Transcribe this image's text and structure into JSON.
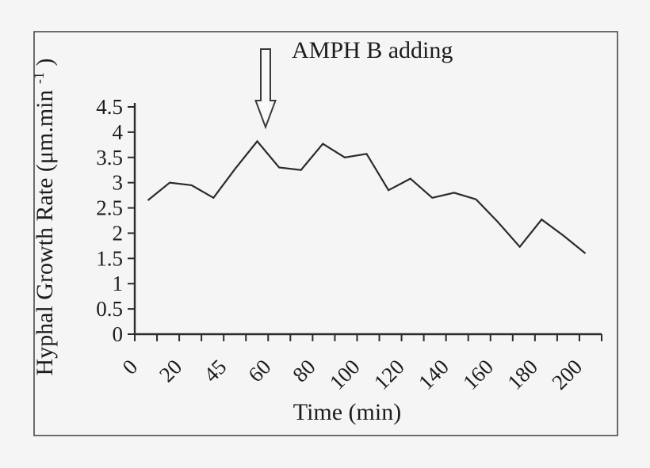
{
  "chart_data": {
    "type": "line",
    "title": "",
    "xlabel": "Time (min)",
    "ylabel": "Hyphal Growth Rate (μm.min⁻¹)",
    "ylabel_parts": {
      "pre": "Hyphal Growth Rate (μm.min",
      "sup": "-1",
      "post": ")"
    },
    "x_tick_labels": [
      "0",
      "20",
      "45",
      "60",
      "80",
      "100",
      "120",
      "140",
      "160",
      "180",
      "200"
    ],
    "y_tick_labels": [
      "4.5",
      "4",
      "3.5",
      "3",
      "2.5",
      "2",
      "1.5",
      "1",
      "0.5",
      "0"
    ],
    "x": [
      0,
      10,
      20,
      30,
      40,
      50,
      60,
      70,
      80,
      90,
      100,
      110,
      120,
      130,
      140,
      150,
      160,
      170,
      180,
      190,
      200
    ],
    "values": [
      2.65,
      3.0,
      2.95,
      2.7,
      3.28,
      3.82,
      3.3,
      3.25,
      3.77,
      3.5,
      3.57,
      2.85,
      3.08,
      2.7,
      2.8,
      2.67,
      2.22,
      1.73,
      2.27,
      1.95,
      1.6
    ],
    "ylim": [
      0,
      4.5
    ],
    "y_tick_step": 0.5,
    "x_minor_ticks_between_labels": 1,
    "grid": false,
    "legend": "none",
    "line_color": "#2b2b2b",
    "background_color": "#f5f5f5",
    "annotations": [
      {
        "text": "AMPH B adding",
        "marker": "open-down-arrow",
        "points_to_x": 55,
        "points_to_y_value": 4.0
      }
    ]
  }
}
